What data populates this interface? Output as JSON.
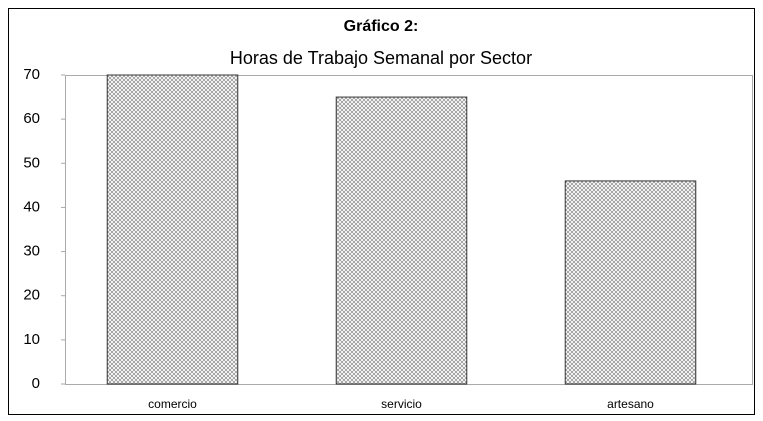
{
  "chart_data": {
    "type": "bar",
    "title": "Gráfico 2:",
    "subtitle": "Horas de Trabajo Semanal por Sector",
    "categories": [
      "comercio",
      "servicio",
      "artesano"
    ],
    "values": [
      70,
      65,
      46
    ],
    "color": "#808080",
    "ylim": [
      0,
      70
    ],
    "yticks": [
      0,
      10,
      20,
      30,
      40,
      50,
      60,
      70
    ],
    "grid": false
  }
}
